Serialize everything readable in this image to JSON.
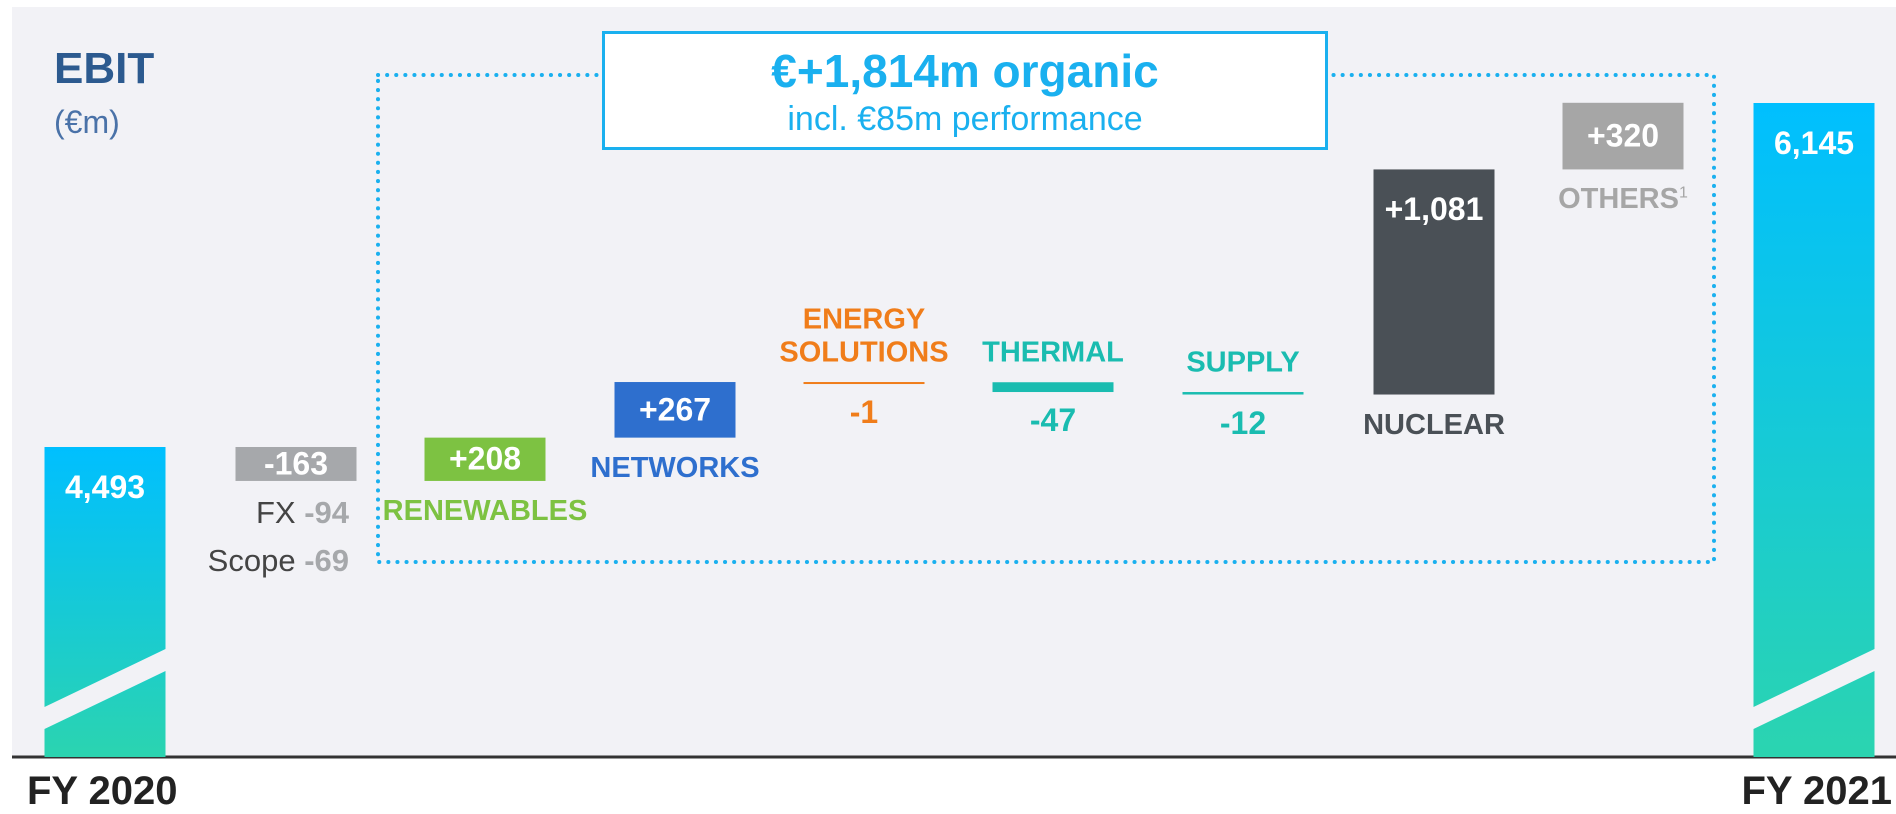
{
  "chart_data": {
    "type": "waterfall",
    "title": "EBIT",
    "subtitle": "(€m)",
    "categories": [
      "FY 2020",
      null,
      "RENEWABLES",
      "NETWORKS",
      "ENERGY SOLUTIONS",
      "THERMAL",
      "SUPPLY",
      "NUCLEAR",
      "OTHERS",
      "FY 2021"
    ],
    "values": [
      4493,
      -163,
      208,
      267,
      -1,
      -47,
      -12,
      1081,
      320,
      6145
    ],
    "value_labels": [
      "4,493",
      "-163",
      "+208",
      "+267",
      "-1",
      "-47",
      "-12",
      "+1,081",
      "+320",
      "6,145"
    ],
    "measure": [
      "absolute",
      "relative",
      "relative",
      "relative",
      "relative",
      "relative",
      "relative",
      "relative",
      "relative",
      "absolute"
    ],
    "colors": [
      "#00bfff",
      "#a6a8ab",
      "#7dc242",
      "#2e6fce",
      "#f07d1a",
      "#1abcb0",
      "#1abcb0",
      "#4a5056",
      "#a6a6a6",
      "#00bfff"
    ],
    "total_gradient_end": "#2bd4b0",
    "others_footnote": "1",
    "breakdown": [
      {
        "name": "FX",
        "value": -94
      },
      {
        "name": "Scope",
        "value": -69
      }
    ],
    "annotation": {
      "headline": "€+1,814m organic",
      "detail": "incl. €85m performance"
    }
  }
}
